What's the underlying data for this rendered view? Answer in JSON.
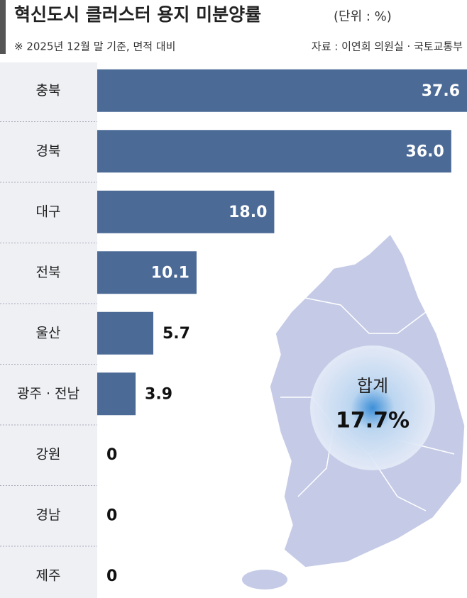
{
  "chart_data": {
    "type": "hbar",
    "title": "혁신도시 클러스터 용지 미분양률",
    "unit": "(단위 : %)",
    "subtitle": "※ 2025년 12월 말 기준, 면적 대비",
    "source": "자료 : 이연희 의원실 · 국토교통부",
    "categories": [
      "충북",
      "경북",
      "대구",
      "전북",
      "울산",
      "광주 · 전남",
      "강원",
      "경남",
      "제주"
    ],
    "values": [
      37.6,
      36.0,
      18.0,
      10.1,
      5.7,
      3.9,
      0,
      0,
      0
    ],
    "value_labels": [
      "37.6",
      "36.0",
      "18.0",
      "10.1",
      "5.7",
      "3.9",
      "0",
      "0",
      "0"
    ],
    "color": "#4b6a96",
    "total": {
      "label": "합계",
      "value": 17.7,
      "value_label": "17.7%"
    }
  }
}
